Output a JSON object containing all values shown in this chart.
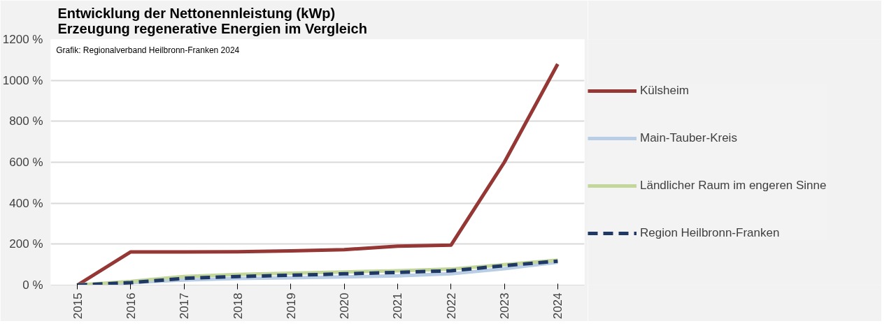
{
  "chart_data": {
    "type": "line",
    "title": "Entwicklung der Nettonennleistung (kWp)\nErzeugung regenerative Energien im Vergleich",
    "categories": [
      "2015",
      "2016",
      "2017",
      "2018",
      "2019",
      "2020",
      "2021",
      "2022",
      "2023",
      "2024"
    ],
    "series": [
      {
        "name": "Külsheim",
        "color": "#953735",
        "values": [
          0,
          162,
          162,
          163,
          167,
          173,
          190,
          195,
          600,
          1080
        ]
      },
      {
        "name": "Main-Tauber-Kreis",
        "color": "#b9cde5",
        "values": [
          0,
          12,
          25,
          32,
          36,
          40,
          45,
          55,
          80,
          112
        ]
      },
      {
        "name": "Ländlicher Raum im engeren Sinne",
        "color": "#c3d69b",
        "values": [
          0,
          18,
          42,
          52,
          58,
          64,
          70,
          78,
          100,
          122
        ]
      },
      {
        "name": "Region Heilbronn-Franken",
        "color": "#1f3864",
        "values": [
          0,
          12,
          33,
          42,
          48,
          55,
          62,
          70,
          95,
          117
        ],
        "line_style": "dashed"
      }
    ],
    "ylim": [
      0,
      1200
    ],
    "yticks": [
      {
        "value": 0,
        "label": "0 %"
      },
      {
        "value": 200,
        "label": "200 %"
      },
      {
        "value": 400,
        "label": "400 %"
      },
      {
        "value": 600,
        "label": "600 %"
      },
      {
        "value": 800,
        "label": "800 %"
      },
      {
        "value": 1000,
        "label": "1000 %"
      },
      {
        "value": 1200,
        "label": "1200 %"
      }
    ],
    "grid": "y",
    "legend": "right",
    "line_style": "solid",
    "annotations": [
      "Grafik: Regionalverband Heilbronn-Franken 2024"
    ]
  }
}
